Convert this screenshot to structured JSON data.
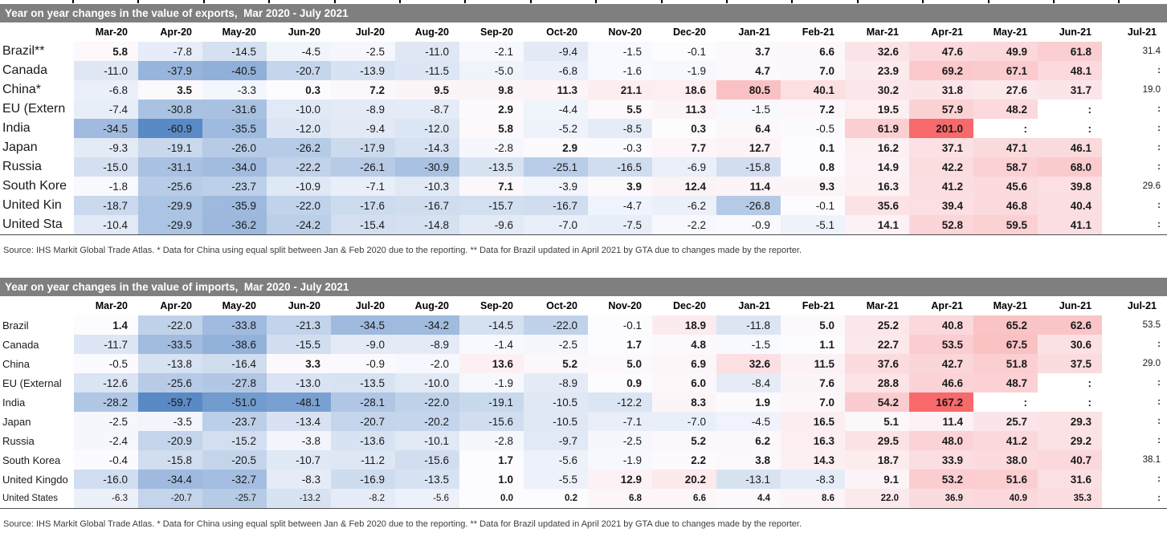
{
  "page": {
    "title_bar_color": "#7F7F7F",
    "title_text_color": "#FFFFFF"
  },
  "chart_data": [
    {
      "type": "heatmap",
      "title": "Year on year changes in the value of exports,  Mar 2020 - July 2021",
      "columns": [
        "Mar-20",
        "Apr-20",
        "May-20",
        "Jun-20",
        "Jul-20",
        "Aug-20",
        "Sep-20",
        "Oct-20",
        "Nov-20",
        "Dec-20",
        "Jan-21",
        "Feb-21",
        "Mar-21",
        "Apr-21",
        "May-21",
        "Jun-21",
        "Jul-21"
      ],
      "rows": [
        {
          "label": "Brazil**",
          "values": [
            5.8,
            -7.8,
            -14.5,
            -4.5,
            -2.5,
            -11.0,
            -2.1,
            -9.4,
            -1.5,
            -0.1,
            3.7,
            6.6,
            32.6,
            47.6,
            49.9,
            61.8,
            31.4
          ]
        },
        {
          "label": "Canada",
          "values": [
            -11.0,
            -37.9,
            -40.5,
            -20.7,
            -13.9,
            -11.5,
            -5.0,
            -6.8,
            -1.6,
            -1.9,
            4.7,
            7.0,
            23.9,
            69.2,
            67.1,
            48.1,
            ":"
          ]
        },
        {
          "label": "China*",
          "values": [
            -6.8,
            3.5,
            -3.3,
            0.3,
            7.2,
            9.5,
            9.8,
            11.3,
            21.1,
            18.6,
            80.5,
            40.1,
            30.2,
            31.8,
            27.6,
            31.7,
            19.0
          ]
        },
        {
          "label": "EU (Extern",
          "values": [
            -7.4,
            -30.8,
            -31.6,
            -10.0,
            -8.9,
            -8.7,
            2.9,
            -4.4,
            5.5,
            11.3,
            -1.5,
            7.2,
            19.5,
            57.9,
            48.2,
            ":",
            ":"
          ]
        },
        {
          "label": "India",
          "values": [
            -34.5,
            -60.9,
            -35.5,
            -12.0,
            -9.4,
            -12.0,
            5.8,
            -5.2,
            -8.5,
            0.3,
            6.4,
            -0.5,
            61.9,
            201.0,
            ":",
            ":",
            ":"
          ]
        },
        {
          "label": "Japan",
          "values": [
            -9.3,
            -19.1,
            -26.0,
            -26.2,
            -17.9,
            -14.3,
            -2.8,
            2.9,
            -0.3,
            7.7,
            12.7,
            0.1,
            16.2,
            37.1,
            47.1,
            46.1,
            ":"
          ]
        },
        {
          "label": "Russia",
          "values": [
            -15.0,
            -31.1,
            -34.0,
            -22.2,
            -26.1,
            -30.9,
            -13.5,
            -25.1,
            -16.5,
            -6.9,
            -15.8,
            0.8,
            14.9,
            42.2,
            58.7,
            68.0,
            ":"
          ]
        },
        {
          "label": "South Kore",
          "values": [
            -1.8,
            -25.6,
            -23.7,
            -10.9,
            -7.1,
            -10.3,
            7.1,
            -3.9,
            3.9,
            12.4,
            11.4,
            9.3,
            16.3,
            41.2,
            45.6,
            39.8,
            29.6
          ]
        },
        {
          "label": "United Kin",
          "values": [
            -18.7,
            -29.9,
            -35.9,
            -22.0,
            -17.6,
            -16.7,
            -15.7,
            -16.7,
            -4.7,
            -6.2,
            -26.8,
            -0.1,
            35.6,
            39.4,
            46.8,
            40.4,
            ":"
          ]
        },
        {
          "label": "United Sta",
          "values": [
            -10.4,
            -29.9,
            -36.2,
            -24.2,
            -15.4,
            -14.8,
            -9.6,
            -7.0,
            -7.5,
            -2.2,
            -0.9,
            -5.1,
            14.1,
            52.8,
            59.5,
            41.1,
            ":"
          ]
        }
      ],
      "source": "Source: IHS Markit Global Trade Atlas. * Data for China using equal split between Jan & Feb 2020 due to the reporting. ** Data for Brazil updated in April 2021 by GTA due to changes made by the reporter.",
      "colorscale": {
        "min": -60.9,
        "mid": 0,
        "max": 201.0,
        "min_color": "#5A8AC6",
        "mid_color": "#FCFCFF",
        "max_color": "#F8696B",
        "no_data_marker": ":"
      },
      "layout": {
        "last_column_uncolored": true,
        "small_font_rows": []
      }
    },
    {
      "type": "heatmap",
      "title": "Year on year changes in the value of imports,  Mar 2020 - July 2021",
      "columns": [
        "Mar-20",
        "Apr-20",
        "May-20",
        "Jun-20",
        "Jul-20",
        "Aug-20",
        "Sep-20",
        "Oct-20",
        "Nov-20",
        "Dec-20",
        "Jan-21",
        "Feb-21",
        "Mar-21",
        "Apr-21",
        "May-21",
        "Jun-21",
        "Jul-21"
      ],
      "rows": [
        {
          "label": "Brazil",
          "values": [
            1.4,
            -22.0,
            -33.8,
            -21.3,
            -34.5,
            -34.2,
            -14.5,
            -22.0,
            -0.1,
            18.9,
            -11.8,
            5.0,
            25.2,
            40.8,
            65.2,
            62.6,
            53.5
          ]
        },
        {
          "label": "Canada",
          "values": [
            -11.7,
            -33.5,
            -38.6,
            -15.5,
            -9.0,
            -8.9,
            -1.4,
            -2.5,
            1.7,
            4.8,
            -1.5,
            1.1,
            22.7,
            53.5,
            67.5,
            30.6,
            ":"
          ]
        },
        {
          "label": "China",
          "values": [
            -0.5,
            -13.8,
            -16.4,
            3.3,
            -0.9,
            -2.0,
            13.6,
            5.2,
            5.0,
            6.9,
            32.6,
            11.5,
            37.6,
            42.7,
            51.8,
            37.5,
            29.0
          ]
        },
        {
          "label": "EU (External",
          "values": [
            -12.6,
            -25.6,
            -27.8,
            -13.0,
            -13.5,
            -10.0,
            -1.9,
            -8.9,
            0.9,
            6.0,
            -8.4,
            7.6,
            28.8,
            46.6,
            48.7,
            ":",
            ":"
          ]
        },
        {
          "label": "India",
          "values": [
            -28.2,
            -59.7,
            -51.0,
            -48.1,
            -28.1,
            -22.0,
            -19.1,
            -10.5,
            -12.2,
            8.3,
            1.9,
            7.0,
            54.2,
            167.2,
            ":",
            ":",
            ":"
          ]
        },
        {
          "label": "Japan",
          "values": [
            -2.5,
            -3.5,
            -23.7,
            -13.4,
            -20.7,
            -20.2,
            -15.6,
            -10.5,
            -7.1,
            -7.0,
            -4.5,
            16.5,
            5.1,
            11.4,
            25.7,
            29.3,
            ":"
          ]
        },
        {
          "label": "Russia",
          "values": [
            -2.4,
            -20.9,
            -15.2,
            -3.8,
            -13.6,
            -10.1,
            -2.8,
            -9.7,
            -2.5,
            5.2,
            6.2,
            16.3,
            29.5,
            48.0,
            41.2,
            29.2,
            ":"
          ]
        },
        {
          "label": "South Korea",
          "values": [
            -0.4,
            -15.8,
            -20.5,
            -10.7,
            -11.2,
            -15.6,
            1.7,
            -5.6,
            -1.9,
            2.2,
            3.8,
            14.3,
            18.7,
            33.9,
            38.0,
            40.7,
            38.1
          ]
        },
        {
          "label": "United Kingdo",
          "values": [
            -16.0,
            -34.4,
            -32.7,
            -8.3,
            -16.9,
            -13.5,
            1.0,
            -5.5,
            12.9,
            20.2,
            -13.1,
            -8.3,
            9.1,
            53.2,
            51.6,
            31.6,
            ":"
          ]
        },
        {
          "label": "United States",
          "values": [
            -6.3,
            -20.7,
            -25.7,
            -13.2,
            -8.2,
            -5.6,
            0.0,
            0.2,
            6.8,
            6.6,
            4.4,
            8.6,
            22.0,
            36.9,
            40.9,
            35.3,
            ":"
          ]
        }
      ],
      "source": "Source: IHS Markit Global Trade Atlas. * Data for China using equal split between Jan & Feb 2020 due to the reporting. ** Data for Brazil updated in April 2021 by GTA due to changes made by the reporter.",
      "colorscale": {
        "min": -59.7,
        "mid": 0,
        "max": 167.2,
        "min_color": "#5A8AC6",
        "mid_color": "#FCFCFF",
        "max_color": "#F8696B",
        "no_data_marker": ":"
      },
      "layout": {
        "last_column_uncolored": true,
        "small_font_rows": [
          "United States"
        ]
      }
    }
  ]
}
